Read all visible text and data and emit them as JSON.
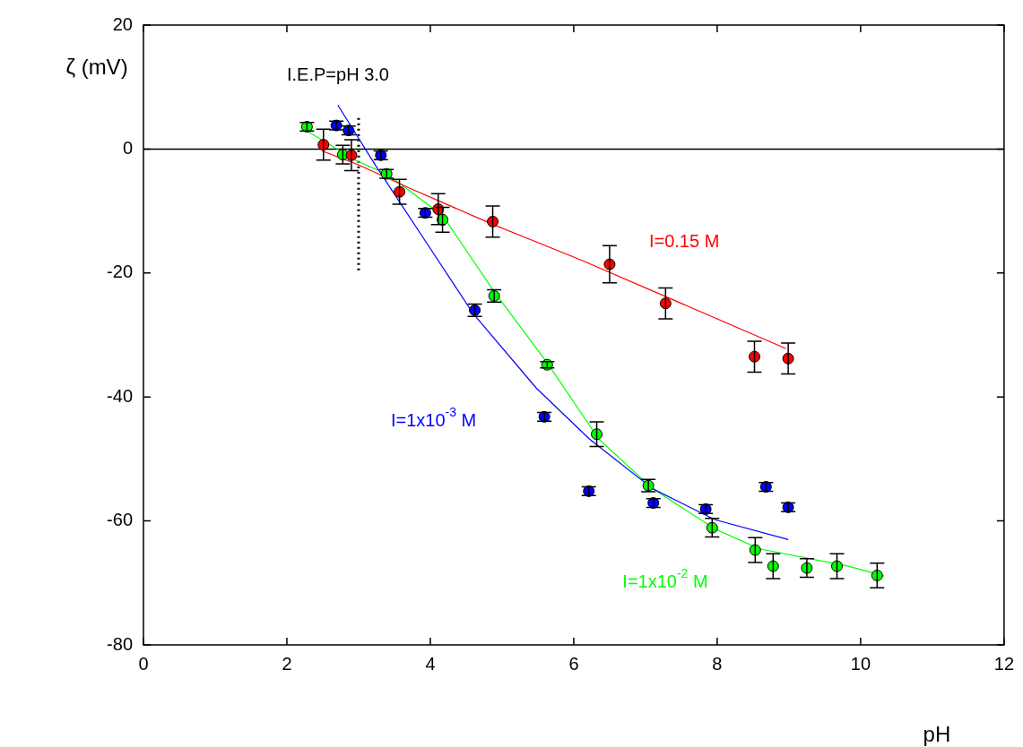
{
  "chart_data": {
    "type": "scatter",
    "xlabel": "pH",
    "ylabel": "ζ (mV)",
    "xlim": [
      0,
      12
    ],
    "xticks": [
      0,
      2,
      4,
      6,
      8,
      10,
      12
    ],
    "ylim": [
      -80,
      20
    ],
    "yticks": [
      -80,
      -60,
      -40,
      -20,
      0,
      20
    ],
    "grid": false,
    "legend": false,
    "ref_lines": [
      {
        "axis": "y",
        "value": 0,
        "color": "#000000",
        "line_style": "solid"
      }
    ],
    "annotations": [
      "I.E.P=pH 3.0"
    ],
    "series": [
      {
        "type": "scatter",
        "marker": "circle",
        "name": "I=0.15 M",
        "color": "#ff0000",
        "x": [
          2.51,
          2.9,
          3.57,
          4.11,
          4.87,
          6.5,
          7.28,
          8.52,
          8.99
        ],
        "values": [
          0.7,
          -1.0,
          -6.9,
          -9.7,
          -11.7,
          -18.6,
          -24.9,
          -33.5,
          -33.8
        ],
        "errors": [
          2.5,
          2.5,
          2,
          2.5,
          2.5,
          3,
          2.5,
          2.5,
          2.5
        ]
      },
      {
        "type": "scatter",
        "marker": "circle",
        "name": "I=1x10$^{-3}$ M",
        "color": "#0000ff",
        "x": [
          2.69,
          2.86,
          3.31,
          3.93,
          4.62,
          5.59,
          6.21,
          7.11,
          7.84,
          8.68,
          8.99
        ],
        "values": [
          3.8,
          3.0,
          -1.0,
          -10.3,
          -26.0,
          -43.2,
          -55.2,
          -57.1,
          -58.1,
          -54.5,
          -57.8
        ],
        "errors": [
          0.7,
          0.7,
          0.7,
          0.7,
          1,
          0.7,
          0.7,
          0.7,
          0.7,
          0.7,
          0.7
        ]
      },
      {
        "type": "scatter",
        "marker": "circle",
        "name": "I=1x10$^{-2}$ M",
        "color": "#00ff00",
        "x": [
          2.28,
          2.78,
          3.39,
          4.17,
          4.89,
          5.63,
          6.32,
          7.04,
          7.93,
          8.53,
          8.78,
          9.25,
          9.67,
          10.23
        ],
        "values": [
          3.6,
          -0.9,
          -4.0,
          -11.4,
          -23.7,
          -34.8,
          -46.0,
          -54.3,
          -61.1,
          -64.7,
          -67.3,
          -67.6,
          -67.3,
          -68.8
        ],
        "errors": [
          0.7,
          1.5,
          0.7,
          2,
          1,
          0.5,
          2,
          1,
          1.5,
          2,
          2,
          1.5,
          2,
          2
        ]
      },
      {
        "type": "line",
        "marker": "none",
        "color": "#ff0000",
        "x": [
          2.49,
          2.99,
          3.73,
          4.86,
          6.1,
          7.34,
          8.96
        ],
        "values": [
          -0.3,
          -2.5,
          -6.4,
          -12.1,
          -17.9,
          -24.1,
          -32.2
        ]
      },
      {
        "type": "line",
        "marker": "none",
        "color": "#0000ff",
        "x": [
          2.71,
          3.24,
          3.86,
          4.6,
          5.48,
          6.22,
          7.1,
          7.97,
          8.99
        ],
        "values": [
          7.1,
          -2.7,
          -13.6,
          -26.6,
          -38.6,
          -46.8,
          -54.8,
          -59.8,
          -63.0
        ]
      },
      {
        "type": "line",
        "marker": "none",
        "color": "#00ff00",
        "x": [
          2.28,
          2.99,
          3.39,
          4.17,
          4.89,
          5.63,
          6.35,
          7.1,
          7.97,
          8.59,
          9.83,
          10.33
        ],
        "values": [
          2.9,
          -2.0,
          -4.0,
          -10.7,
          -23.0,
          -34.5,
          -46.8,
          -54.8,
          -61.3,
          -64.5,
          -67.3,
          -68.9
        ]
      },
      {
        "type": "line",
        "marker": "none",
        "color": "#000000",
        "line_style": "dotted",
        "x": [
          3.0,
          3.0
        ],
        "values": [
          5,
          -20
        ]
      }
    ]
  }
}
